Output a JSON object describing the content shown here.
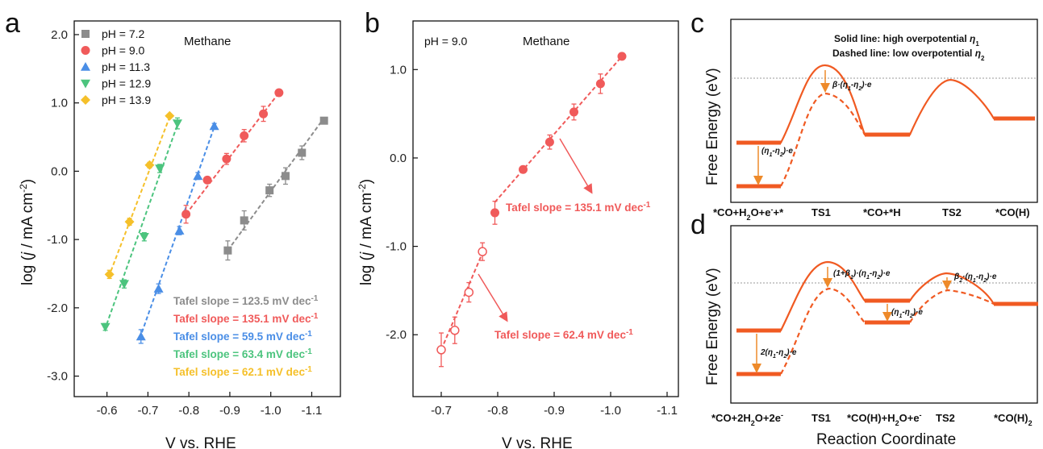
{
  "panel_letters": {
    "a": "a",
    "b": "b",
    "c": "c",
    "d": "d"
  },
  "colors": {
    "ph72": "#8c8c8c",
    "ph90": "#f05a5a",
    "ph113": "#4a8ee6",
    "ph129": "#4cc47e",
    "ph139": "#f5c02a",
    "energy": "#f05a22",
    "arrow": "#ee8a2a"
  },
  "chart_data": [
    {
      "type": "scatter",
      "panel": "a",
      "xlabel": "V vs. RHE",
      "ylabel": "log (j / mA cm-2)",
      "xlim": [
        -0.52,
        -1.17
      ],
      "ylim": [
        -3.3,
        2.2
      ],
      "xticks": [
        -0.6,
        -0.7,
        -0.8,
        -0.9,
        -1.0,
        -1.1
      ],
      "xtick_labels": [
        "-0.6",
        "-0.7",
        "-0.8",
        "-0.9",
        "-1.0",
        "-1.1"
      ],
      "yticks": [
        2.0,
        1.0,
        0.0,
        -1.0,
        -2.0,
        -3.0
      ],
      "ytick_labels": [
        "2.0",
        "1.0",
        "0.0",
        "-1.0",
        "-2.0",
        "-3.0"
      ],
      "annotation": "Methane",
      "legend_position": "top-left",
      "series": [
        {
          "name": "pH = 7.2",
          "color_key": "ph72",
          "marker": "square",
          "x": [
            -0.895,
            -0.935,
            -0.997,
            -1.036,
            -1.076,
            -1.13
          ],
          "y": [
            -1.16,
            -0.72,
            -0.28,
            -0.07,
            0.27,
            0.74
          ],
          "err": [
            0.14,
            0.14,
            0.09,
            0.12,
            0.1,
            0.04
          ],
          "fit": [
            [
              -0.895,
              -1.16
            ],
            [
              -1.13,
              0.78
            ]
          ],
          "tafel": "Tafel slope = 123.5 mV dec-1"
        },
        {
          "name": "pH = 9.0",
          "color_key": "ph90",
          "marker": "circle",
          "x": [
            -0.793,
            -0.845,
            -0.892,
            -0.935,
            -0.982,
            -1.02
          ],
          "y": [
            -0.63,
            -0.13,
            0.18,
            0.52,
            0.84,
            1.15
          ],
          "err": [
            0.13,
            0.03,
            0.08,
            0.09,
            0.11,
            0.03
          ],
          "fit": [
            [
              -0.793,
              -0.63
            ],
            [
              -1.02,
              1.15
            ]
          ],
          "tafel": "Tafel slope = 135.1 mV dec-1"
        },
        {
          "name": "pH = 11.3",
          "color_key": "ph113",
          "marker": "triangle-up",
          "x": [
            -0.683,
            -0.726,
            -0.777,
            -0.822,
            -0.862
          ],
          "y": [
            -2.42,
            -1.72,
            -0.87,
            -0.07,
            0.66
          ],
          "err": [
            0.1,
            0.07,
            0.06,
            0.05,
            0.04
          ],
          "fit": [
            [
              -0.68,
              -2.45
            ],
            [
              -0.865,
              0.7
            ]
          ],
          "tafel": "Tafel slope = 59.5 mV dec-1"
        },
        {
          "name": "pH = 12.9",
          "color_key": "ph129",
          "marker": "triangle-down",
          "x": [
            -0.596,
            -0.642,
            -0.691,
            -0.729,
            -0.772
          ],
          "y": [
            -2.28,
            -1.65,
            -0.96,
            0.04,
            0.7
          ],
          "err": [
            0.05,
            0.06,
            0.06,
            0.06,
            0.08
          ],
          "fit": [
            [
              -0.594,
              -2.33
            ],
            [
              -0.775,
              0.73
            ]
          ],
          "tafel": "Tafel slope = 63.4 mV dec-1"
        },
        {
          "name": "pH = 13.9",
          "color_key": "ph139",
          "marker": "diamond",
          "x": [
            -0.606,
            -0.655,
            -0.704,
            -0.753
          ],
          "y": [
            -1.51,
            -0.74,
            0.09,
            0.81
          ],
          "err": [
            0.06,
            0.05,
            0.04,
            0.02
          ],
          "fit": [
            [
              -0.604,
              -1.55
            ],
            [
              -0.756,
              0.84
            ]
          ],
          "tafel": "Tafel slope = 62.1 mV dec-1"
        }
      ]
    },
    {
      "type": "scatter",
      "panel": "b",
      "xlabel": "V vs. RHE",
      "ylabel": "log (j / mA cm-2)",
      "xlim": [
        -0.65,
        -1.12
      ],
      "ylim": [
        -2.7,
        1.55
      ],
      "xticks": [
        -0.7,
        -0.8,
        -0.9,
        -1.0,
        -1.1
      ],
      "xtick_labels": [
        "-0.7",
        "-0.8",
        "-0.9",
        "-1.0",
        "-1.1"
      ],
      "yticks": [
        1.0,
        0.0,
        -1.0,
        -2.0
      ],
      "ytick_labels": [
        "1.0",
        "0.0",
        "-1.0",
        "-2.0"
      ],
      "annotation": "Methane",
      "note": "pH = 9.0",
      "series": [
        {
          "name": "open",
          "color_key": "ph90",
          "marker": "circle-open",
          "x": [
            -0.7,
            -0.724,
            -0.749,
            -0.773
          ],
          "y": [
            -2.17,
            -1.95,
            -1.52,
            -1.06
          ],
          "err": [
            0.19,
            0.15,
            0.11,
            0.1
          ],
          "fit": [
            [
              -0.7,
              -2.17
            ],
            [
              -0.776,
              -1.03
            ]
          ]
        },
        {
          "name": "filled",
          "color_key": "ph90",
          "marker": "circle",
          "x": [
            -0.795,
            -0.845,
            -0.892,
            -0.935,
            -0.982,
            -1.02
          ],
          "y": [
            -0.62,
            -0.13,
            0.18,
            0.52,
            0.84,
            1.15
          ],
          "err": [
            0.13,
            0.03,
            0.08,
            0.09,
            0.11,
            0.03
          ],
          "fit": [
            [
              -0.795,
              -0.5
            ],
            [
              -1.02,
              1.15
            ]
          ]
        }
      ],
      "tafel_high": "Tafel slope = 135.1 mV dec-1",
      "tafel_low": "Tafel slope = 62.4 mV dec-1"
    }
  ],
  "panel_c": {
    "ylabel": "Free Energy (eV)",
    "note_solid": "Solid line: high overpotential η1",
    "note_dashed": "Dashed line: low overpotential η2",
    "labels": [
      "*CO+H2O+e-+*",
      "TS1",
      "*CO+*H",
      "TS2",
      "*CO(H)"
    ],
    "eq_beta": "β·(η1-η2)·e",
    "eq_diff": "(η1-η2)·e"
  },
  "panel_d": {
    "ylabel": "Free Energy (eV)",
    "xlabel": "Reaction Coordinate",
    "labels": [
      "*CO+2H2O+2e-",
      "TS1",
      "*CO(H)+H2O+e-",
      "TS2",
      "*CO(H)2"
    ],
    "eq_ts1": "(1+β1)·(η1-η2)·e",
    "eq_ts2": "β2·(η1-η2)·e",
    "eq_mid": "(η1-η2)·e",
    "eq_start": "2(η1-η2)·e"
  }
}
